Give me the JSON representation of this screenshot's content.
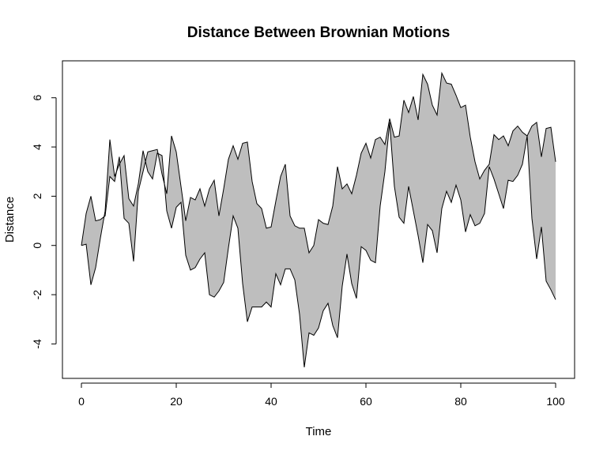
{
  "chart_data": {
    "type": "area",
    "title": "Distance Between Brownian Motions",
    "xlabel": "Time",
    "ylabel": "Distance",
    "xlim": [
      -4,
      104
    ],
    "ylim": [
      -5.4,
      7.5
    ],
    "xticks": [
      0,
      20,
      40,
      60,
      80,
      100
    ],
    "yticks": [
      -4,
      -2,
      0,
      2,
      4,
      6
    ],
    "grid": false,
    "fill_color": "#bebebe",
    "line_color": "#000000",
    "x": [
      0,
      1,
      2,
      3,
      4,
      5,
      6,
      7,
      8,
      9,
      10,
      11,
      12,
      13,
      14,
      15,
      16,
      17,
      18,
      19,
      20,
      21,
      22,
      23,
      24,
      25,
      26,
      27,
      28,
      29,
      30,
      31,
      32,
      33,
      34,
      35,
      36,
      37,
      38,
      39,
      40,
      41,
      42,
      43,
      44,
      45,
      46,
      47,
      48,
      49,
      50,
      51,
      52,
      53,
      54,
      55,
      56,
      57,
      58,
      59,
      60,
      61,
      62,
      63,
      64,
      65,
      66,
      67,
      68,
      69,
      70,
      71,
      72,
      73,
      74,
      75,
      76,
      77,
      78,
      79,
      80,
      81,
      82,
      83,
      84,
      85,
      86,
      87,
      88,
      89,
      90,
      91,
      92,
      93,
      94,
      95,
      96,
      97,
      98,
      99,
      100
    ],
    "series": [
      {
        "values": [
          0.0,
          1.3,
          2.0,
          1.0,
          1.05,
          1.2,
          2.8,
          2.6,
          3.6,
          1.1,
          0.9,
          -0.65,
          2.2,
          3.0,
          3.8,
          3.85,
          3.9,
          2.9,
          2.1,
          4.45,
          3.8,
          2.4,
          1.0,
          1.95,
          1.85,
          2.3,
          1.6,
          2.3,
          2.65,
          1.2,
          2.3,
          3.5,
          4.05,
          3.5,
          4.15,
          4.2,
          2.6,
          1.7,
          1.5,
          0.7,
          0.75,
          1.8,
          2.8,
          3.3,
          1.2,
          0.8,
          0.7,
          0.7,
          -0.3,
          0.0,
          1.05,
          0.9,
          0.85,
          1.6,
          3.2,
          2.3,
          2.5,
          2.1,
          2.85,
          3.75,
          4.15,
          3.55,
          4.3,
          4.4,
          4.1,
          5.15,
          4.4,
          4.45,
          5.9,
          5.4,
          6.05,
          5.1,
          6.95,
          6.55,
          5.7,
          5.3,
          7.0,
          6.6,
          6.55,
          6.1,
          5.6,
          5.7,
          4.4,
          3.4,
          2.7,
          3.05,
          3.3,
          4.5,
          4.3,
          4.45,
          4.05,
          4.65,
          4.85,
          4.6,
          4.45,
          4.85,
          5.0,
          3.6,
          4.75,
          4.8,
          3.4
        ]
      },
      {
        "values": [
          0.0,
          0.05,
          -1.6,
          -0.9,
          0.3,
          1.4,
          4.3,
          2.8,
          3.3,
          3.65,
          1.9,
          1.6,
          2.5,
          3.85,
          3.0,
          2.7,
          3.75,
          3.65,
          1.4,
          0.7,
          1.55,
          1.75,
          -0.4,
          -1.0,
          -0.9,
          -0.55,
          -0.3,
          -2.0,
          -2.1,
          -1.85,
          -1.5,
          -0.1,
          1.2,
          0.7,
          -1.55,
          -3.1,
          -2.5,
          -2.5,
          -2.5,
          -2.3,
          -2.5,
          -1.15,
          -1.6,
          -0.95,
          -0.95,
          -1.4,
          -2.8,
          -4.95,
          -3.55,
          -3.65,
          -3.35,
          -2.65,
          -2.35,
          -3.25,
          -3.75,
          -1.65,
          -0.35,
          -1.55,
          -2.15,
          -0.05,
          -0.2,
          -0.6,
          -0.7,
          1.6,
          3.0,
          5.0,
          2.4,
          1.15,
          0.9,
          2.4,
          1.4,
          0.4,
          -0.7,
          0.85,
          0.6,
          -0.3,
          1.5,
          2.2,
          1.75,
          2.45,
          1.85,
          0.55,
          1.25,
          0.8,
          0.9,
          1.3,
          3.2,
          2.7,
          2.1,
          1.5,
          2.65,
          2.6,
          2.85,
          3.3,
          4.45,
          1.1,
          -0.55,
          0.75,
          -1.45,
          -1.8,
          -2.2
        ]
      }
    ]
  }
}
